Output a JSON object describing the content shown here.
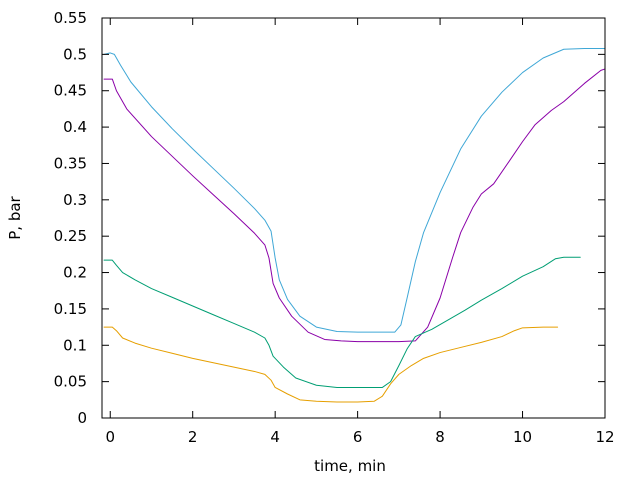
{
  "chart_data": {
    "type": "line",
    "title": "",
    "xlabel": "time, min",
    "ylabel": "P, bar",
    "xlim": [
      -0.2,
      12
    ],
    "ylim": [
      0,
      0.55
    ],
    "grid": false,
    "legend": "none",
    "x_ticks": [
      0,
      2,
      4,
      6,
      8,
      10,
      12
    ],
    "x_tick_labels": [
      "0",
      "2",
      "4",
      "6",
      "8",
      "10",
      "12"
    ],
    "y_ticks": [
      0,
      0.05,
      0.1,
      0.15,
      0.2,
      0.25,
      0.3,
      0.35,
      0.4,
      0.45,
      0.5,
      0.55
    ],
    "y_tick_labels": [
      "0",
      "0.05",
      "0.1",
      "0.15",
      "0.2",
      "0.25",
      "0.3",
      "0.35",
      "0.4",
      "0.45",
      "0.5",
      "0.55"
    ],
    "series": [
      {
        "color": "#3fa7d6",
        "points": [
          [
            -0.15,
            0.5
          ],
          [
            0,
            0.502
          ],
          [
            0.1,
            0.5
          ],
          [
            0.25,
            0.485
          ],
          [
            0.5,
            0.462
          ],
          [
            1,
            0.428
          ],
          [
            1.5,
            0.398
          ],
          [
            2,
            0.37
          ],
          [
            2.5,
            0.343
          ],
          [
            3,
            0.316
          ],
          [
            3.5,
            0.288
          ],
          [
            3.75,
            0.272
          ],
          [
            3.9,
            0.257
          ],
          [
            4,
            0.22
          ],
          [
            4.1,
            0.19
          ],
          [
            4.3,
            0.163
          ],
          [
            4.6,
            0.14
          ],
          [
            5,
            0.125
          ],
          [
            5.5,
            0.119
          ],
          [
            6,
            0.118
          ],
          [
            6.5,
            0.118
          ],
          [
            6.9,
            0.118
          ],
          [
            7.05,
            0.128
          ],
          [
            7.2,
            0.165
          ],
          [
            7.4,
            0.215
          ],
          [
            7.6,
            0.255
          ],
          [
            8,
            0.31
          ],
          [
            8.5,
            0.37
          ],
          [
            9,
            0.415
          ],
          [
            9.5,
            0.448
          ],
          [
            10,
            0.475
          ],
          [
            10.5,
            0.495
          ],
          [
            11,
            0.507
          ],
          [
            11.5,
            0.508
          ],
          [
            12,
            0.508
          ]
        ]
      },
      {
        "color": "#8a00a8",
        "points": [
          [
            -0.15,
            0.466
          ],
          [
            0.05,
            0.466
          ],
          [
            0.15,
            0.45
          ],
          [
            0.4,
            0.425
          ],
          [
            1,
            0.387
          ],
          [
            1.5,
            0.36
          ],
          [
            2,
            0.333
          ],
          [
            2.5,
            0.307
          ],
          [
            3,
            0.281
          ],
          [
            3.5,
            0.254
          ],
          [
            3.75,
            0.238
          ],
          [
            3.85,
            0.22
          ],
          [
            3.95,
            0.185
          ],
          [
            4.1,
            0.165
          ],
          [
            4.4,
            0.14
          ],
          [
            4.8,
            0.118
          ],
          [
            5.2,
            0.108
          ],
          [
            5.6,
            0.106
          ],
          [
            6,
            0.105
          ],
          [
            6.5,
            0.105
          ],
          [
            7,
            0.105
          ],
          [
            7.4,
            0.106
          ],
          [
            7.7,
            0.125
          ],
          [
            8,
            0.165
          ],
          [
            8.3,
            0.22
          ],
          [
            8.5,
            0.255
          ],
          [
            8.8,
            0.29
          ],
          [
            9,
            0.308
          ],
          [
            9.3,
            0.322
          ],
          [
            9.7,
            0.355
          ],
          [
            10,
            0.38
          ],
          [
            10.3,
            0.403
          ],
          [
            10.7,
            0.423
          ],
          [
            11,
            0.435
          ],
          [
            11.5,
            0.46
          ],
          [
            11.9,
            0.478
          ],
          [
            12,
            0.48
          ]
        ]
      },
      {
        "color": "#009e73",
        "points": [
          [
            -0.15,
            0.217
          ],
          [
            0.05,
            0.217
          ],
          [
            0.15,
            0.21
          ],
          [
            0.3,
            0.2
          ],
          [
            0.6,
            0.19
          ],
          [
            1,
            0.178
          ],
          [
            1.5,
            0.166
          ],
          [
            2,
            0.154
          ],
          [
            2.5,
            0.142
          ],
          [
            3,
            0.13
          ],
          [
            3.5,
            0.118
          ],
          [
            3.75,
            0.11
          ],
          [
            3.85,
            0.1
          ],
          [
            3.95,
            0.085
          ],
          [
            4.2,
            0.07
          ],
          [
            4.5,
            0.055
          ],
          [
            5,
            0.045
          ],
          [
            5.5,
            0.042
          ],
          [
            6,
            0.042
          ],
          [
            6.6,
            0.042
          ],
          [
            6.8,
            0.05
          ],
          [
            7,
            0.072
          ],
          [
            7.2,
            0.095
          ],
          [
            7.4,
            0.112
          ],
          [
            7.8,
            0.122
          ],
          [
            8.2,
            0.135
          ],
          [
            8.6,
            0.148
          ],
          [
            9,
            0.162
          ],
          [
            9.5,
            0.178
          ],
          [
            10,
            0.195
          ],
          [
            10.5,
            0.208
          ],
          [
            10.8,
            0.219
          ],
          [
            11,
            0.221
          ],
          [
            11.4,
            0.221
          ]
        ]
      },
      {
        "color": "#e69f00",
        "points": [
          [
            -0.15,
            0.125
          ],
          [
            0.05,
            0.125
          ],
          [
            0.15,
            0.12
          ],
          [
            0.3,
            0.11
          ],
          [
            0.6,
            0.103
          ],
          [
            1,
            0.096
          ],
          [
            1.5,
            0.089
          ],
          [
            2,
            0.082
          ],
          [
            2.5,
            0.076
          ],
          [
            3,
            0.07
          ],
          [
            3.5,
            0.064
          ],
          [
            3.75,
            0.06
          ],
          [
            3.9,
            0.052
          ],
          [
            4,
            0.042
          ],
          [
            4.3,
            0.033
          ],
          [
            4.6,
            0.025
          ],
          [
            5,
            0.023
          ],
          [
            5.5,
            0.022
          ],
          [
            6,
            0.022
          ],
          [
            6.4,
            0.023
          ],
          [
            6.6,
            0.03
          ],
          [
            6.8,
            0.047
          ],
          [
            7,
            0.06
          ],
          [
            7.3,
            0.072
          ],
          [
            7.6,
            0.082
          ],
          [
            8,
            0.09
          ],
          [
            8.5,
            0.097
          ],
          [
            9,
            0.104
          ],
          [
            9.5,
            0.112
          ],
          [
            9.8,
            0.12
          ],
          [
            10,
            0.124
          ],
          [
            10.5,
            0.125
          ],
          [
            10.85,
            0.125
          ]
        ]
      }
    ]
  }
}
